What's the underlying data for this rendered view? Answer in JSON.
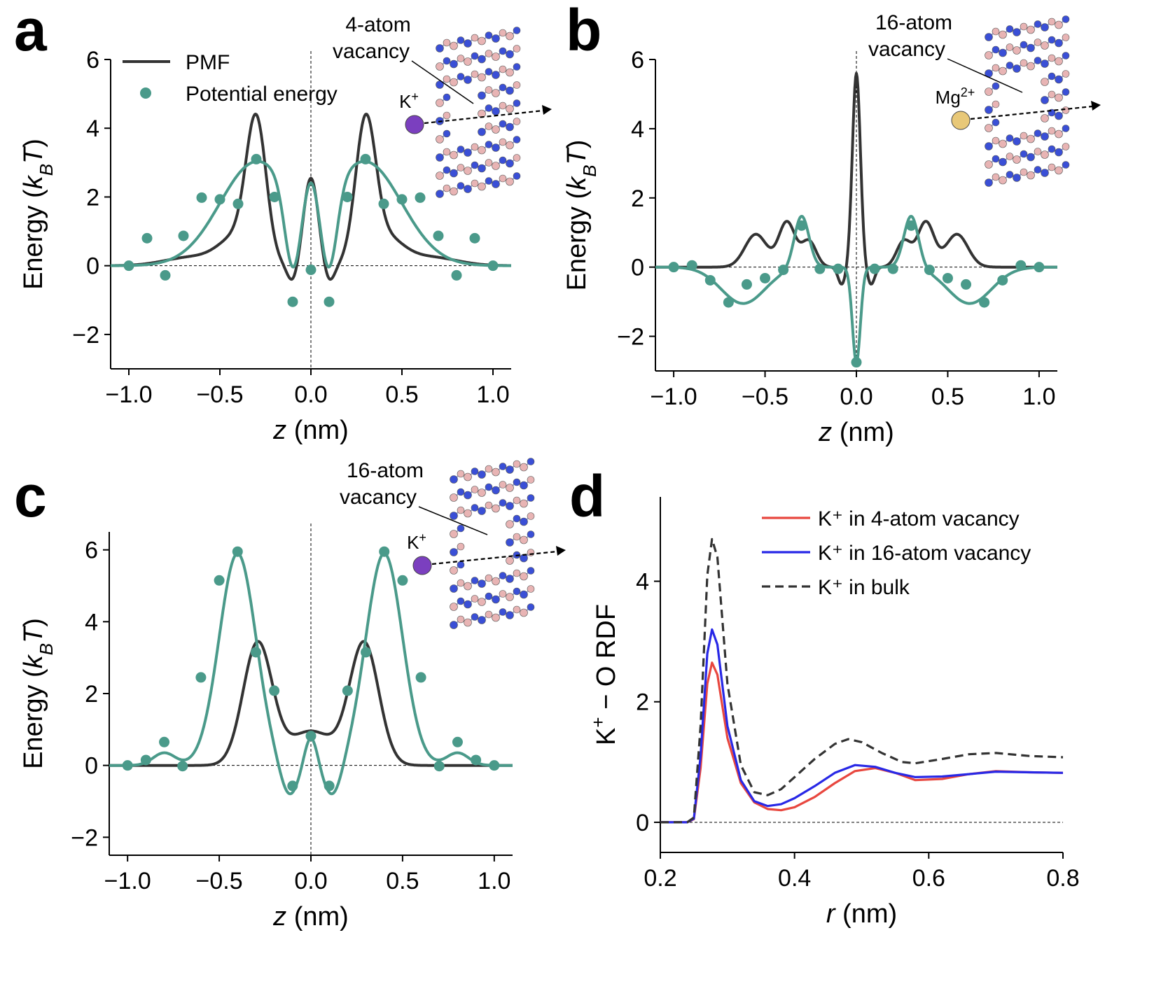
{
  "colors": {
    "pmf": "#333333",
    "potential": "#4a9a8a",
    "red": "#e8473f",
    "blue": "#2828e6",
    "bulk": "#333333",
    "nitrogen": "#3a4fd6",
    "boron": "#e8b4b4",
    "k_ion": "#7b3fbf",
    "mg_ion": "#e8c878"
  },
  "chart_data": [
    {
      "panel": "a",
      "type": "line",
      "xlabel_italic": "z",
      "xlabel_rest": " (nm)",
      "ylabel": "Energy (k_B T)",
      "ylabel_pre": "Energy (",
      "ylabel_k": "k",
      "ylabel_sub": "B",
      "ylabel_T": "T",
      "ylabel_post": ")",
      "xlim": [
        -1.1,
        1.1
      ],
      "ylim": [
        -3,
        6
      ],
      "xticks": [
        -1.0,
        -0.5,
        0.0,
        0.5,
        1.0
      ],
      "xtick_labels": [
        "−1.0",
        "−0.5",
        "0.0",
        "0.5",
        "1.0"
      ],
      "yticks": [
        -2,
        0,
        2,
        4,
        6
      ],
      "ytick_labels": [
        "−2",
        "0",
        "2",
        "4",
        "6"
      ],
      "legend": [
        {
          "label": "PMF",
          "kind": "line",
          "color": "#333333"
        },
        {
          "label": "Potential energy",
          "kind": "marker",
          "color": "#4a9a8a"
        }
      ],
      "pmf_peaks": [
        {
          "c": -0.3,
          "h": 3.9,
          "w": 0.055
        },
        {
          "c": 0.3,
          "h": 3.9,
          "w": 0.055
        },
        {
          "c": 0.0,
          "h": 2.55,
          "w": 0.04
        },
        {
          "c": -0.4,
          "h": 0.8,
          "w": 0.1
        },
        {
          "c": 0.4,
          "h": 0.8,
          "w": 0.1
        },
        {
          "c": -0.65,
          "h": 0.25,
          "w": 0.15
        },
        {
          "c": 0.65,
          "h": 0.25,
          "w": 0.15
        },
        {
          "c": -0.1,
          "h": -0.5,
          "w": 0.03
        },
        {
          "c": 0.1,
          "h": -0.5,
          "w": 0.03
        }
      ],
      "fit_peaks": [
        {
          "c": -0.3,
          "h": 3.0,
          "w": 0.2
        },
        {
          "c": 0.3,
          "h": 3.0,
          "w": 0.2
        },
        {
          "c": 0.0,
          "h": 0.85,
          "w": 0.04
        },
        {
          "c": -0.1,
          "h": -2.3,
          "w": 0.045
        },
        {
          "c": 0.1,
          "h": -2.3,
          "w": 0.045
        }
      ],
      "points": {
        "x": [
          -1.0,
          -0.9,
          -0.8,
          -0.7,
          -0.6,
          -0.5,
          -0.4,
          -0.3,
          -0.2,
          -0.1,
          0.0,
          0.1,
          0.2,
          0.3,
          0.4,
          0.5,
          0.6,
          0.7,
          0.8,
          0.9,
          1.0
        ],
        "y": [
          0.0,
          0.8,
          -0.28,
          0.87,
          1.98,
          1.93,
          1.8,
          3.1,
          2.0,
          -1.05,
          -0.12,
          -1.05,
          2.0,
          3.1,
          1.8,
          1.93,
          1.98,
          0.87,
          -0.28,
          0.8,
          0.0
        ]
      },
      "inset": {
        "vacancy_label_1": "4-atom",
        "vacancy_label_2": "vacancy",
        "ion": "K",
        "ion_charge": "+",
        "ion_type": "k"
      }
    },
    {
      "panel": "b",
      "type": "line",
      "xlabel_italic": "z",
      "xlabel_rest": " (nm)",
      "ylabel": "Energy (k_B T)",
      "ylabel_pre": "Energy (",
      "ylabel_k": "k",
      "ylabel_sub": "B",
      "ylabel_T": "T",
      "ylabel_post": ")",
      "xlim": [
        -1.1,
        1.1
      ],
      "ylim": [
        -3,
        6
      ],
      "xticks": [
        -1.0,
        -0.5,
        0.0,
        0.5,
        1.0
      ],
      "xtick_labels": [
        "−1.0",
        "−0.5",
        "0.0",
        "0.5",
        "1.0"
      ],
      "yticks": [
        -2,
        0,
        2,
        4,
        6
      ],
      "ytick_labels": [
        "−2",
        "0",
        "2",
        "4",
        "6"
      ],
      "pmf_peaks": [
        {
          "c": 0.0,
          "h": 5.6,
          "w": 0.022
        },
        {
          "c": -0.38,
          "h": 1.3,
          "w": 0.045
        },
        {
          "c": 0.38,
          "h": 1.3,
          "w": 0.045
        },
        {
          "c": -0.55,
          "h": 0.95,
          "w": 0.06
        },
        {
          "c": 0.55,
          "h": 0.95,
          "w": 0.06
        },
        {
          "c": -0.26,
          "h": 0.75,
          "w": 0.04
        },
        {
          "c": 0.26,
          "h": 0.75,
          "w": 0.04
        },
        {
          "c": -0.08,
          "h": -0.5,
          "w": 0.02
        },
        {
          "c": 0.08,
          "h": -0.5,
          "w": 0.02
        }
      ],
      "fit_peaks": [
        {
          "c": 0.0,
          "h": -2.75,
          "w": 0.022
        },
        {
          "c": -0.3,
          "h": 1.5,
          "w": 0.04
        },
        {
          "c": 0.3,
          "h": 1.5,
          "w": 0.04
        },
        {
          "c": -0.62,
          "h": -1.05,
          "w": 0.12
        },
        {
          "c": 0.62,
          "h": -1.05,
          "w": 0.12
        }
      ],
      "points": {
        "x": [
          -1.0,
          -0.9,
          -0.8,
          -0.7,
          -0.6,
          -0.5,
          -0.4,
          -0.3,
          -0.2,
          -0.1,
          0.0,
          0.1,
          0.2,
          0.3,
          0.4,
          0.5,
          0.6,
          0.7,
          0.8,
          0.9,
          1.0
        ],
        "y": [
          0.0,
          0.05,
          -0.38,
          -1.02,
          -0.5,
          -0.32,
          -0.08,
          1.2,
          -0.05,
          -0.05,
          -2.75,
          -0.05,
          -0.05,
          1.2,
          -0.08,
          -0.32,
          -0.5,
          -1.02,
          -0.38,
          0.05,
          0.0
        ]
      },
      "inset": {
        "vacancy_label_1": "16-atom",
        "vacancy_label_2": "vacancy",
        "ion": "Mg",
        "ion_charge": "2+",
        "ion_type": "mg"
      }
    },
    {
      "panel": "c",
      "type": "line",
      "xlabel_italic": "z",
      "xlabel_rest": " (nm)",
      "ylabel": "Energy (k_B T)",
      "ylabel_pre": "Energy (",
      "ylabel_k": "k",
      "ylabel_sub": "B",
      "ylabel_T": "T",
      "ylabel_post": ")",
      "xlim": [
        -1.1,
        1.1
      ],
      "ylim": [
        -2.5,
        6.5
      ],
      "xticks": [
        -1.0,
        -0.5,
        0.0,
        0.5,
        1.0
      ],
      "xtick_labels": [
        "−1.0",
        "−0.5",
        "0.0",
        "0.5",
        "1.0"
      ],
      "yticks": [
        -2,
        0,
        2,
        4,
        6
      ],
      "ytick_labels": [
        "−2",
        "0",
        "2",
        "4",
        "6"
      ],
      "pmf_peaks": [
        {
          "c": -0.29,
          "h": 3.4,
          "w": 0.08
        },
        {
          "c": 0.29,
          "h": 3.4,
          "w": 0.08
        },
        {
          "c": 0.0,
          "h": 0.95,
          "w": 0.12
        }
      ],
      "fit_peaks": [
        {
          "c": -0.4,
          "h": 5.9,
          "w": 0.1
        },
        {
          "c": 0.4,
          "h": 5.9,
          "w": 0.1
        },
        {
          "c": 0.0,
          "h": 0.85,
          "w": 0.035
        },
        {
          "c": -0.12,
          "h": -0.9,
          "w": 0.05
        },
        {
          "c": 0.12,
          "h": -0.9,
          "w": 0.05
        },
        {
          "c": -0.8,
          "h": 0.35,
          "w": 0.06
        },
        {
          "c": 0.8,
          "h": 0.35,
          "w": 0.06
        }
      ],
      "points": {
        "x": [
          -1.0,
          -0.9,
          -0.8,
          -0.7,
          -0.6,
          -0.5,
          -0.4,
          -0.3,
          -0.2,
          -0.1,
          0.0,
          0.1,
          0.2,
          0.3,
          0.4,
          0.5,
          0.6,
          0.7,
          0.8,
          0.9,
          1.0
        ],
        "y": [
          0.0,
          0.15,
          0.65,
          -0.02,
          2.45,
          5.15,
          5.95,
          3.15,
          2.08,
          -0.57,
          0.82,
          -0.57,
          2.08,
          3.15,
          5.95,
          5.15,
          2.45,
          -0.02,
          0.65,
          0.15,
          0.0
        ]
      },
      "inset": {
        "vacancy_label_1": "16-atom",
        "vacancy_label_2": "vacancy",
        "ion": "K",
        "ion_charge": "+",
        "ion_type": "k"
      }
    },
    {
      "panel": "d",
      "type": "line",
      "xlabel_italic": "r",
      "xlabel_rest": " (nm)",
      "ylabel": "K+ − O RDF",
      "ylabel_pre": "K",
      "ylabel_sup": "+",
      "ylabel_post": " − O RDF",
      "xlim": [
        0.2,
        0.8
      ],
      "ylim": [
        -0.5,
        5.4
      ],
      "xticks": [
        0.2,
        0.4,
        0.6,
        0.8
      ],
      "xtick_labels": [
        "0.2",
        "0.4",
        "0.6",
        "0.8"
      ],
      "yticks": [
        0,
        2,
        4
      ],
      "ytick_labels": [
        "0",
        "2",
        "4"
      ],
      "legend": [
        {
          "label": "K⁺ in 4-atom vacancy",
          "kind": "line",
          "color": "#e8473f"
        },
        {
          "label": "K⁺ in 16-atom vacancy",
          "kind": "line",
          "color": "#2828e6"
        },
        {
          "label": "K⁺ in bulk",
          "kind": "dashed",
          "color": "#333333"
        }
      ],
      "series": [
        {
          "name": "K⁺ in 4-atom vacancy",
          "color": "#e8473f",
          "dashed": false,
          "x": [
            0.2,
            0.24,
            0.25,
            0.26,
            0.27,
            0.277,
            0.285,
            0.3,
            0.32,
            0.34,
            0.36,
            0.38,
            0.4,
            0.43,
            0.46,
            0.49,
            0.52,
            0.55,
            0.58,
            0.62,
            0.66,
            0.7,
            0.75,
            0.8
          ],
          "y": [
            0.0,
            0.0,
            0.05,
            0.9,
            2.3,
            2.65,
            2.45,
            1.4,
            0.65,
            0.33,
            0.22,
            0.2,
            0.25,
            0.42,
            0.65,
            0.85,
            0.9,
            0.82,
            0.7,
            0.72,
            0.8,
            0.85,
            0.83,
            0.82
          ]
        },
        {
          "name": "K⁺ in 16-atom vacancy",
          "color": "#2828e6",
          "dashed": false,
          "x": [
            0.2,
            0.24,
            0.25,
            0.26,
            0.27,
            0.277,
            0.285,
            0.3,
            0.32,
            0.34,
            0.36,
            0.38,
            0.4,
            0.43,
            0.46,
            0.49,
            0.52,
            0.55,
            0.58,
            0.62,
            0.66,
            0.7,
            0.75,
            0.8
          ],
          "y": [
            0.0,
            0.0,
            0.06,
            1.1,
            2.8,
            3.2,
            2.95,
            1.6,
            0.7,
            0.35,
            0.27,
            0.3,
            0.4,
            0.6,
            0.82,
            0.95,
            0.92,
            0.82,
            0.75,
            0.76,
            0.8,
            0.84,
            0.83,
            0.82
          ]
        },
        {
          "name": "K⁺ in bulk",
          "color": "#333333",
          "dashed": true,
          "x": [
            0.2,
            0.24,
            0.25,
            0.26,
            0.27,
            0.277,
            0.285,
            0.3,
            0.32,
            0.34,
            0.36,
            0.38,
            0.4,
            0.43,
            0.46,
            0.48,
            0.5,
            0.53,
            0.56,
            0.58,
            0.62,
            0.66,
            0.7,
            0.75,
            0.8
          ],
          "y": [
            0.0,
            0.0,
            0.08,
            1.6,
            4.1,
            4.7,
            4.4,
            2.3,
            0.95,
            0.5,
            0.45,
            0.55,
            0.75,
            1.05,
            1.3,
            1.38,
            1.33,
            1.15,
            1.0,
            0.98,
            1.05,
            1.13,
            1.15,
            1.1,
            1.08
          ]
        }
      ]
    }
  ]
}
